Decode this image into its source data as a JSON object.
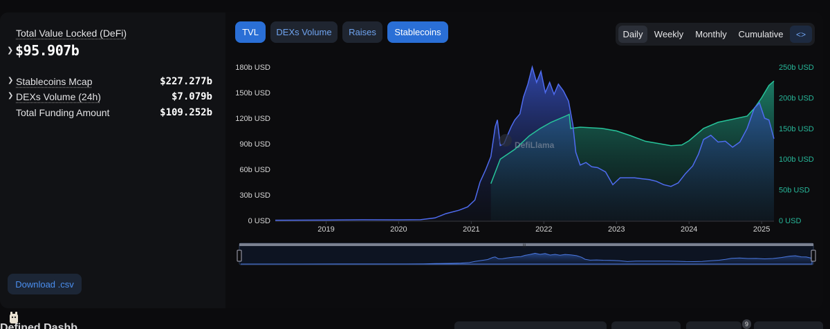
{
  "summary": {
    "tvl_label": "Total Value Locked (DeFi)",
    "tvl_value": "$95.907b",
    "stats": [
      {
        "label": "Stablecoins Mcap",
        "value": "$227.277b"
      },
      {
        "label": "DEXs Volume (24h)",
        "value": "$7.079b"
      },
      {
        "label": "Total Funding Amount",
        "value": "$109.252b"
      }
    ],
    "download_label": "Download .csv"
  },
  "tabs": [
    {
      "label": "TVL",
      "active": true
    },
    {
      "label": "DEXs Volume",
      "active": false
    },
    {
      "label": "Raises",
      "active": false
    },
    {
      "label": "Stablecoins",
      "active": true
    }
  ],
  "periods": [
    "Daily",
    "Weekly",
    "Monthly",
    "Cumulative"
  ],
  "selected_period": "Daily",
  "embed_icon": "code-icon",
  "watermark": "DefiLlama",
  "bottom": {
    "badge": "9",
    "peek_title": "Defined Dashb"
  },
  "colors": {
    "tvl_line": "#4f6cf0",
    "stablecoins_line": "#27c49a",
    "left_axis": "#d6d6d6",
    "right_axis": "#27b89a",
    "active_tab": "#2a6fd6"
  },
  "chart_data": {
    "type": "area",
    "x_ticks": [
      "2019",
      "2020",
      "2021",
      "2022",
      "2023",
      "2024",
      "2025"
    ],
    "xlim": [
      2018.3,
      2025.17
    ],
    "left_axis": {
      "ticks": [
        "0 USD",
        "30b USD",
        "60b USD",
        "90b USD",
        "120b USD",
        "150b USD",
        "180b USD"
      ],
      "ylim": [
        0,
        180
      ]
    },
    "right_axis": {
      "ticks": [
        "0 USD",
        "50b USD",
        "100b USD",
        "150b USD",
        "200b USD",
        "250b USD"
      ],
      "ylim": [
        0,
        250
      ]
    },
    "series": [
      {
        "name": "TVL",
        "axis": "left",
        "unit": "b USD",
        "points": [
          [
            2018.3,
            0.3
          ],
          [
            2019.0,
            0.5
          ],
          [
            2019.5,
            0.8
          ],
          [
            2020.0,
            0.7
          ],
          [
            2020.3,
            0.9
          ],
          [
            2020.5,
            3.0
          ],
          [
            2020.65,
            8.0
          ],
          [
            2020.83,
            12
          ],
          [
            2020.95,
            16
          ],
          [
            2021.05,
            24
          ],
          [
            2021.12,
            45
          ],
          [
            2021.2,
            60
          ],
          [
            2021.27,
            75
          ],
          [
            2021.33,
            110
          ],
          [
            2021.36,
            118
          ],
          [
            2021.4,
            88
          ],
          [
            2021.45,
            90
          ],
          [
            2021.5,
            100
          ],
          [
            2021.55,
            110
          ],
          [
            2021.6,
            118
          ],
          [
            2021.67,
            125
          ],
          [
            2021.72,
            145
          ],
          [
            2021.78,
            160
          ],
          [
            2021.84,
            180
          ],
          [
            2021.9,
            162
          ],
          [
            2021.96,
            175
          ],
          [
            2022.02,
            150
          ],
          [
            2022.08,
            162
          ],
          [
            2022.14,
            148
          ],
          [
            2022.2,
            160
          ],
          [
            2022.27,
            152
          ],
          [
            2022.34,
            140
          ],
          [
            2022.4,
            112
          ],
          [
            2022.44,
            80
          ],
          [
            2022.5,
            65
          ],
          [
            2022.58,
            68
          ],
          [
            2022.66,
            63
          ],
          [
            2022.74,
            62
          ],
          [
            2022.85,
            57
          ],
          [
            2022.95,
            42
          ],
          [
            2023.05,
            50
          ],
          [
            2023.15,
            50
          ],
          [
            2023.25,
            50
          ],
          [
            2023.35,
            49
          ],
          [
            2023.45,
            48
          ],
          [
            2023.55,
            46
          ],
          [
            2023.65,
            42
          ],
          [
            2023.75,
            40
          ],
          [
            2023.85,
            44
          ],
          [
            2023.95,
            55
          ],
          [
            2024.05,
            64
          ],
          [
            2024.13,
            78
          ],
          [
            2024.2,
            95
          ],
          [
            2024.3,
            100
          ],
          [
            2024.4,
            92
          ],
          [
            2024.5,
            93
          ],
          [
            2024.6,
            86
          ],
          [
            2024.7,
            92
          ],
          [
            2024.8,
            108
          ],
          [
            2024.9,
            132
          ],
          [
            2024.97,
            138
          ],
          [
            2025.04,
            120
          ],
          [
            2025.1,
            118
          ],
          [
            2025.17,
            95.9
          ]
        ]
      },
      {
        "name": "Stablecoins",
        "axis": "right",
        "unit": "b USD",
        "points": [
          [
            2021.27,
            60
          ],
          [
            2021.4,
            100
          ],
          [
            2021.6,
            116
          ],
          [
            2021.8,
            138
          ],
          [
            2021.95,
            150
          ],
          [
            2022.1,
            160
          ],
          [
            2022.3,
            170
          ],
          [
            2022.35,
            173
          ],
          [
            2022.37,
            150
          ],
          [
            2022.5,
            152
          ],
          [
            2022.8,
            150
          ],
          [
            2023.0,
            146
          ],
          [
            2023.2,
            138
          ],
          [
            2023.4,
            129
          ],
          [
            2023.6,
            125
          ],
          [
            2023.75,
            122
          ],
          [
            2023.9,
            123
          ],
          [
            2024.0,
            130
          ],
          [
            2024.2,
            150
          ],
          [
            2024.4,
            160
          ],
          [
            2024.6,
            165
          ],
          [
            2024.8,
            170
          ],
          [
            2024.9,
            183
          ],
          [
            2025.0,
            200
          ],
          [
            2025.1,
            220
          ],
          [
            2025.17,
            227.3
          ]
        ]
      }
    ]
  }
}
